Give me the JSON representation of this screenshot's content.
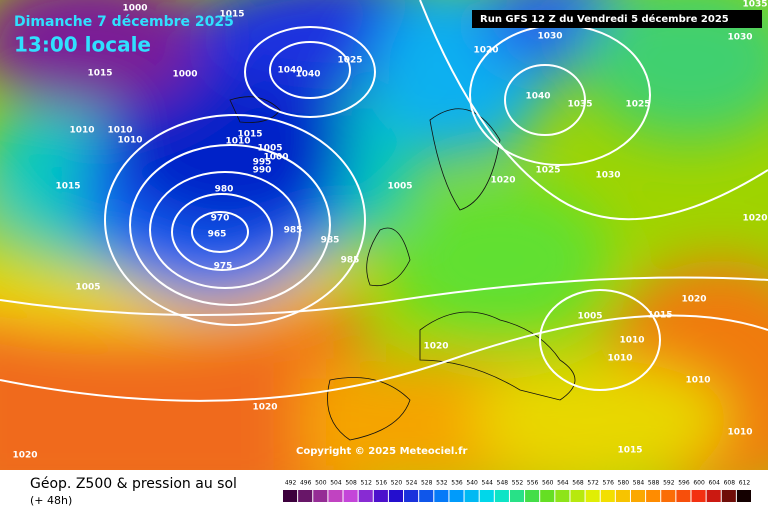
{
  "header": {
    "date": "Dimanche 7 décembre 2025",
    "time": "13:00 locale",
    "run": "Run GFS 12 Z du Vendredi 5 décembre 2025"
  },
  "copyright": "Copyright © 2025 Meteociel.fr",
  "footer": {
    "title": "Géop. Z500 & pression au sol",
    "lead": "(+ 48h)"
  },
  "legend": {
    "labels": [
      "492",
      "496",
      "500",
      "504",
      "508",
      "512",
      "516",
      "520",
      "524",
      "528",
      "532",
      "536",
      "540",
      "544",
      "548",
      "552",
      "556",
      "560",
      "564",
      "568",
      "572",
      "576",
      "580",
      "584",
      "588",
      "592",
      "596",
      "600",
      "604",
      "608",
      "612"
    ]
  },
  "isobar_labels": [
    "1000",
    "1015",
    "1015",
    "1000",
    "1010",
    "1010",
    "1010",
    "1015",
    "1005",
    "1020",
    "1020",
    "980",
    "970",
    "965",
    "975",
    "985",
    "985",
    "985",
    "1040",
    "1040",
    "1025",
    "1020",
    "1030",
    "1040",
    "1035",
    "1025",
    "1030",
    "1030",
    "1025",
    "1020",
    "1005",
    "1015",
    "1010",
    "1005",
    "1000",
    "995",
    "990",
    "1020",
    "1005",
    "1015",
    "1020",
    "1010",
    "1010",
    "1010",
    "1015",
    "1010",
    "1020",
    "1035"
  ]
}
